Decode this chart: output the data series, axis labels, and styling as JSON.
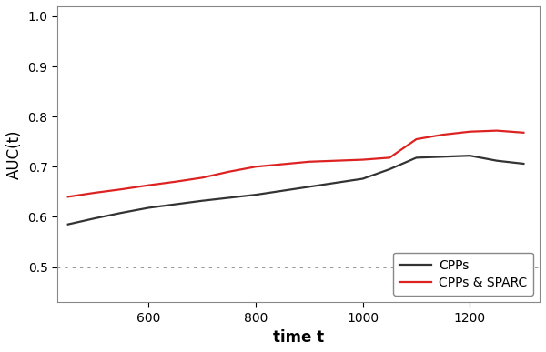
{
  "title": "",
  "xlabel": "time t",
  "ylabel": "AUC(t)",
  "xlim": [
    430,
    1330
  ],
  "ylim": [
    0.43,
    1.02
  ],
  "yticks": [
    0.5,
    0.6,
    0.7,
    0.8,
    0.9,
    1.0
  ],
  "xticks": [
    600,
    800,
    1000,
    1200
  ],
  "hline_y": 0.5,
  "cpps_x": [
    450,
    500,
    550,
    600,
    650,
    700,
    750,
    800,
    850,
    900,
    950,
    1000,
    1050,
    1100,
    1150,
    1200,
    1250,
    1300
  ],
  "cpps_y": [
    0.585,
    0.597,
    0.608,
    0.618,
    0.625,
    0.632,
    0.638,
    0.644,
    0.652,
    0.66,
    0.668,
    0.676,
    0.695,
    0.718,
    0.72,
    0.722,
    0.712,
    0.706
  ],
  "sparc_x": [
    450,
    500,
    550,
    600,
    650,
    700,
    750,
    800,
    850,
    900,
    950,
    1000,
    1050,
    1100,
    1150,
    1200,
    1250,
    1300
  ],
  "sparc_y": [
    0.64,
    0.648,
    0.655,
    0.663,
    0.67,
    0.678,
    0.69,
    0.7,
    0.705,
    0.71,
    0.712,
    0.714,
    0.718,
    0.755,
    0.764,
    0.77,
    0.772,
    0.768
  ],
  "cpps_color": "#333333",
  "sparc_color": "#dd2222",
  "cpps_label": "CPPs",
  "sparc_label": "CPPs & SPARC",
  "line_width": 1.6,
  "bg_color": "#ffffff",
  "spine_color": "#888888",
  "hline_color": "#888888",
  "legend_loc": "lower right",
  "legend_fontsize": 10,
  "xlabel_fontsize": 12,
  "ylabel_fontsize": 12,
  "xlabel_fontweight": "bold",
  "tick_fontsize": 10
}
